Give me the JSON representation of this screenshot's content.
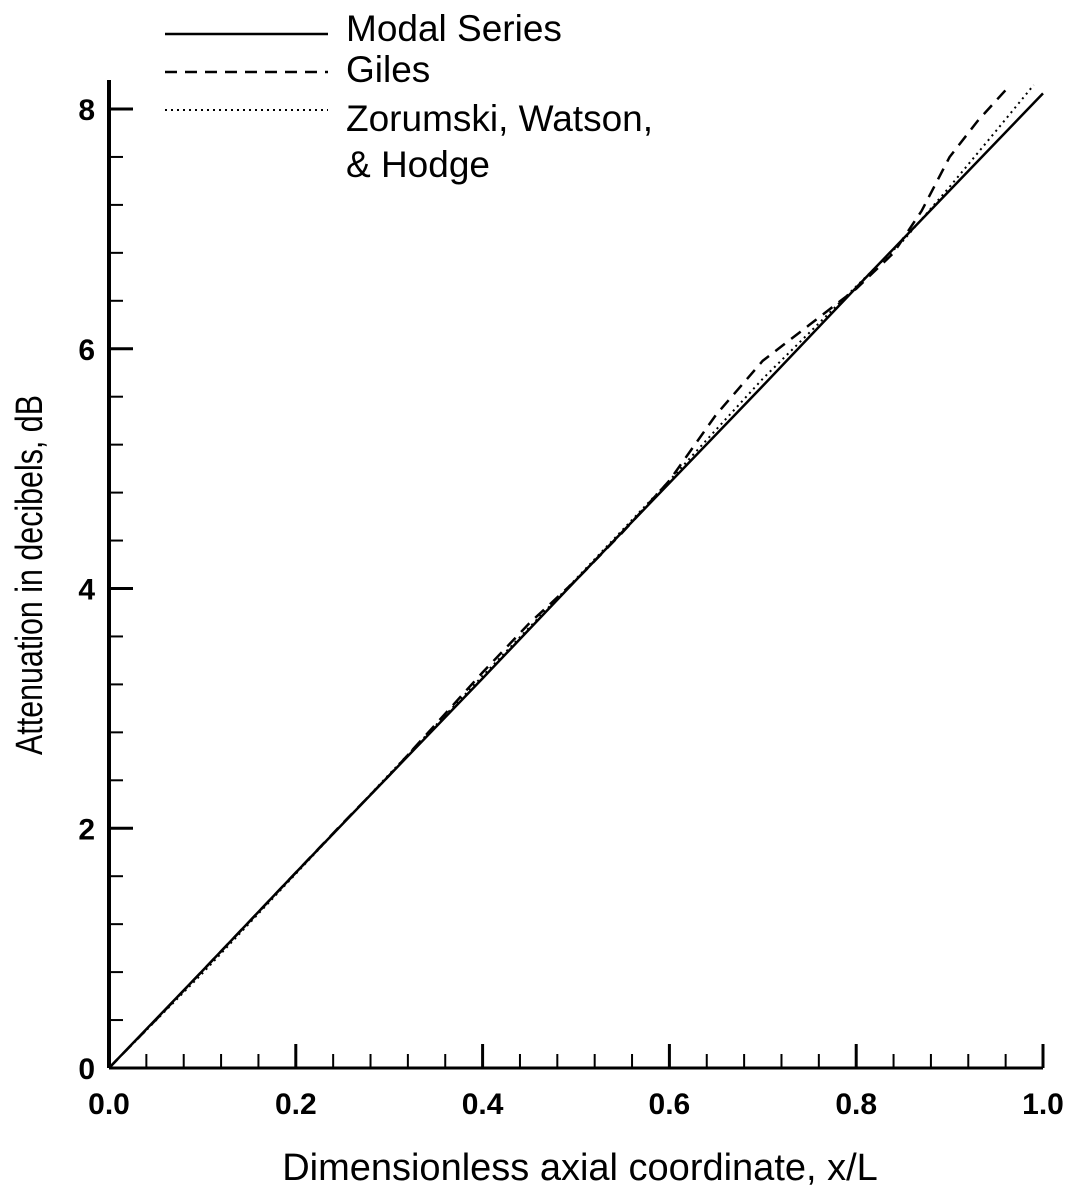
{
  "chart_data": {
    "type": "line",
    "title": "",
    "xlabel": "Dimensionless axial coordinate, x/L",
    "ylabel": "Attenuation in decibels, dB",
    "xlim": [
      0.0,
      1.0
    ],
    "ylim": [
      0,
      8.2
    ],
    "x_ticks": [
      {
        "value": 0.0,
        "label": "0.0"
      },
      {
        "value": 0.2,
        "label": "0.2"
      },
      {
        "value": 0.4,
        "label": "0.4"
      },
      {
        "value": 0.6,
        "label": "0.6"
      },
      {
        "value": 0.8,
        "label": "0.8"
      },
      {
        "value": 1.0,
        "label": "1.0"
      }
    ],
    "x_minor_step": 0.04,
    "y_ticks": [
      {
        "value": 0,
        "label": "0"
      },
      {
        "value": 2,
        "label": "2"
      },
      {
        "value": 4,
        "label": "4"
      },
      {
        "value": 6,
        "label": "6"
      },
      {
        "value": 8,
        "label": "8"
      }
    ],
    "y_minor_step": 0.4,
    "grid": false,
    "legend_position": "top-left",
    "legend_lines": [
      "Modal Series",
      "Giles",
      "Zorumski, Watson,",
      "& Hodge"
    ],
    "series": [
      {
        "name": "Modal Series",
        "style": "solid",
        "x": [
          0.0,
          0.1,
          0.2,
          0.3,
          0.4,
          0.5,
          0.6,
          0.7,
          0.8,
          0.9,
          1.0
        ],
        "y": [
          0.0,
          0.81,
          1.63,
          2.44,
          3.25,
          4.07,
          4.88,
          5.69,
          6.51,
          7.32,
          8.13
        ]
      },
      {
        "name": "Giles",
        "style": "dashed",
        "x": [
          0.0,
          0.05,
          0.1,
          0.15,
          0.2,
          0.25,
          0.3,
          0.35,
          0.4,
          0.45,
          0.5,
          0.55,
          0.6,
          0.65,
          0.7,
          0.75,
          0.8,
          0.84,
          0.87,
          0.9,
          0.93,
          0.965
        ],
        "y": [
          0.0,
          0.4,
          0.81,
          1.22,
          1.63,
          2.04,
          2.44,
          2.87,
          3.3,
          3.71,
          4.07,
          4.47,
          4.9,
          5.45,
          5.9,
          6.2,
          6.5,
          6.8,
          7.15,
          7.6,
          7.9,
          8.2
        ]
      },
      {
        "name": "Zorumski, Watson, & Hodge",
        "style": "dotted",
        "x": [
          0.0,
          0.1,
          0.2,
          0.3,
          0.4,
          0.5,
          0.6,
          0.7,
          0.8,
          0.85,
          0.9,
          0.95,
          0.99
        ],
        "y": [
          0.0,
          0.79,
          1.62,
          2.45,
          3.27,
          4.08,
          4.9,
          5.75,
          6.52,
          6.9,
          7.35,
          7.82,
          8.2
        ]
      }
    ]
  }
}
